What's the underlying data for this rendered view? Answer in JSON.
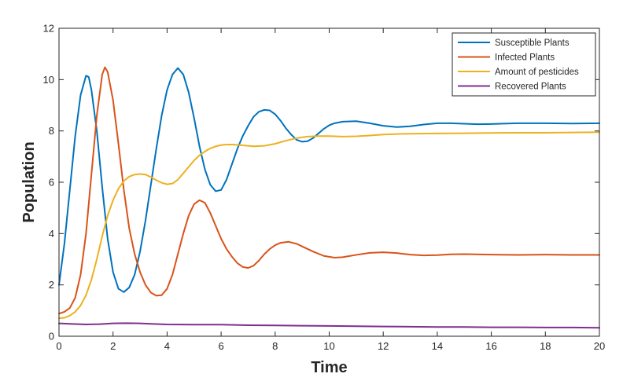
{
  "chart_data": {
    "type": "line",
    "title": "",
    "xlabel": "Time",
    "ylabel": "Population",
    "xlim": [
      0,
      20
    ],
    "ylim": [
      0,
      12
    ],
    "xticks": [
      0,
      2,
      4,
      6,
      8,
      10,
      12,
      14,
      16,
      18,
      20
    ],
    "yticks": [
      0,
      2,
      4,
      6,
      8,
      10,
      12
    ],
    "grid": false,
    "box": true,
    "legend_position": "top-right",
    "series": [
      {
        "name": "Susceptible Plants",
        "color": "#0072BD",
        "points": [
          [
            0,
            2.0
          ],
          [
            0.2,
            3.6
          ],
          [
            0.4,
            5.7
          ],
          [
            0.6,
            7.8
          ],
          [
            0.8,
            9.4
          ],
          [
            1.0,
            10.15
          ],
          [
            1.1,
            10.1
          ],
          [
            1.2,
            9.6
          ],
          [
            1.4,
            8.0
          ],
          [
            1.6,
            5.8
          ],
          [
            1.8,
            3.8
          ],
          [
            2.0,
            2.5
          ],
          [
            2.2,
            1.85
          ],
          [
            2.4,
            1.72
          ],
          [
            2.6,
            1.9
          ],
          [
            2.8,
            2.4
          ],
          [
            3.0,
            3.3
          ],
          [
            3.2,
            4.5
          ],
          [
            3.4,
            5.9
          ],
          [
            3.6,
            7.3
          ],
          [
            3.8,
            8.6
          ],
          [
            4.0,
            9.6
          ],
          [
            4.2,
            10.2
          ],
          [
            4.4,
            10.45
          ],
          [
            4.6,
            10.2
          ],
          [
            4.8,
            9.5
          ],
          [
            5.0,
            8.5
          ],
          [
            5.2,
            7.4
          ],
          [
            5.4,
            6.5
          ],
          [
            5.6,
            5.9
          ],
          [
            5.8,
            5.65
          ],
          [
            6.0,
            5.7
          ],
          [
            6.2,
            6.1
          ],
          [
            6.4,
            6.7
          ],
          [
            6.6,
            7.3
          ],
          [
            6.8,
            7.8
          ],
          [
            7.0,
            8.2
          ],
          [
            7.2,
            8.55
          ],
          [
            7.4,
            8.75
          ],
          [
            7.6,
            8.82
          ],
          [
            7.8,
            8.8
          ],
          [
            8.0,
            8.65
          ],
          [
            8.2,
            8.4
          ],
          [
            8.4,
            8.1
          ],
          [
            8.6,
            7.85
          ],
          [
            8.8,
            7.65
          ],
          [
            9.0,
            7.58
          ],
          [
            9.2,
            7.6
          ],
          [
            9.4,
            7.72
          ],
          [
            9.6,
            7.9
          ],
          [
            9.8,
            8.08
          ],
          [
            10.0,
            8.22
          ],
          [
            10.2,
            8.3
          ],
          [
            10.5,
            8.36
          ],
          [
            11.0,
            8.38
          ],
          [
            11.5,
            8.3
          ],
          [
            12.0,
            8.2
          ],
          [
            12.5,
            8.15
          ],
          [
            13.0,
            8.18
          ],
          [
            13.5,
            8.25
          ],
          [
            14.0,
            8.3
          ],
          [
            14.5,
            8.3
          ],
          [
            15.0,
            8.28
          ],
          [
            15.5,
            8.26
          ],
          [
            16.0,
            8.27
          ],
          [
            17.0,
            8.3
          ],
          [
            18.0,
            8.3
          ],
          [
            19.0,
            8.29
          ],
          [
            20.0,
            8.3
          ]
        ]
      },
      {
        "name": "Infected Plants",
        "color": "#D95319",
        "points": [
          [
            0,
            0.88
          ],
          [
            0.2,
            0.95
          ],
          [
            0.4,
            1.1
          ],
          [
            0.6,
            1.5
          ],
          [
            0.8,
            2.4
          ],
          [
            1.0,
            4.0
          ],
          [
            1.2,
            6.3
          ],
          [
            1.4,
            8.6
          ],
          [
            1.6,
            10.2
          ],
          [
            1.7,
            10.48
          ],
          [
            1.8,
            10.3
          ],
          [
            2.0,
            9.2
          ],
          [
            2.2,
            7.5
          ],
          [
            2.4,
            5.7
          ],
          [
            2.6,
            4.2
          ],
          [
            2.8,
            3.2
          ],
          [
            3.0,
            2.5
          ],
          [
            3.2,
            2.0
          ],
          [
            3.4,
            1.7
          ],
          [
            3.6,
            1.58
          ],
          [
            3.8,
            1.6
          ],
          [
            4.0,
            1.85
          ],
          [
            4.2,
            2.4
          ],
          [
            4.4,
            3.2
          ],
          [
            4.6,
            4.0
          ],
          [
            4.8,
            4.7
          ],
          [
            5.0,
            5.15
          ],
          [
            5.2,
            5.3
          ],
          [
            5.4,
            5.2
          ],
          [
            5.6,
            4.8
          ],
          [
            5.8,
            4.3
          ],
          [
            6.0,
            3.8
          ],
          [
            6.2,
            3.4
          ],
          [
            6.4,
            3.1
          ],
          [
            6.6,
            2.85
          ],
          [
            6.8,
            2.7
          ],
          [
            7.0,
            2.66
          ],
          [
            7.2,
            2.75
          ],
          [
            7.4,
            2.95
          ],
          [
            7.6,
            3.2
          ],
          [
            7.8,
            3.4
          ],
          [
            8.0,
            3.55
          ],
          [
            8.2,
            3.64
          ],
          [
            8.5,
            3.68
          ],
          [
            8.8,
            3.6
          ],
          [
            9.0,
            3.5
          ],
          [
            9.4,
            3.3
          ],
          [
            9.8,
            3.13
          ],
          [
            10.2,
            3.06
          ],
          [
            10.5,
            3.08
          ],
          [
            11.0,
            3.17
          ],
          [
            11.5,
            3.25
          ],
          [
            12.0,
            3.27
          ],
          [
            12.5,
            3.24
          ],
          [
            13.0,
            3.18
          ],
          [
            13.5,
            3.15
          ],
          [
            14.0,
            3.16
          ],
          [
            14.5,
            3.19
          ],
          [
            15.0,
            3.2
          ],
          [
            16.0,
            3.18
          ],
          [
            17.0,
            3.17
          ],
          [
            18.0,
            3.18
          ],
          [
            19.0,
            3.17
          ],
          [
            20.0,
            3.17
          ]
        ]
      },
      {
        "name": "Amount of pesticides",
        "color": "#EDB120",
        "points": [
          [
            0,
            0.7
          ],
          [
            0.2,
            0.72
          ],
          [
            0.4,
            0.8
          ],
          [
            0.6,
            0.95
          ],
          [
            0.8,
            1.2
          ],
          [
            1.0,
            1.6
          ],
          [
            1.2,
            2.2
          ],
          [
            1.4,
            3.0
          ],
          [
            1.6,
            3.9
          ],
          [
            1.8,
            4.7
          ],
          [
            2.0,
            5.3
          ],
          [
            2.2,
            5.75
          ],
          [
            2.4,
            6.05
          ],
          [
            2.6,
            6.22
          ],
          [
            2.8,
            6.3
          ],
          [
            3.0,
            6.32
          ],
          [
            3.2,
            6.3
          ],
          [
            3.4,
            6.2
          ],
          [
            3.6,
            6.08
          ],
          [
            3.8,
            5.98
          ],
          [
            4.0,
            5.92
          ],
          [
            4.2,
            5.95
          ],
          [
            4.4,
            6.1
          ],
          [
            4.6,
            6.35
          ],
          [
            4.8,
            6.6
          ],
          [
            5.0,
            6.85
          ],
          [
            5.2,
            7.05
          ],
          [
            5.4,
            7.2
          ],
          [
            5.6,
            7.32
          ],
          [
            5.8,
            7.4
          ],
          [
            6.0,
            7.45
          ],
          [
            6.2,
            7.47
          ],
          [
            6.4,
            7.47
          ],
          [
            6.8,
            7.44
          ],
          [
            7.2,
            7.4
          ],
          [
            7.6,
            7.42
          ],
          [
            8.0,
            7.5
          ],
          [
            8.4,
            7.62
          ],
          [
            8.8,
            7.72
          ],
          [
            9.2,
            7.78
          ],
          [
            9.6,
            7.8
          ],
          [
            10.0,
            7.8
          ],
          [
            10.5,
            7.78
          ],
          [
            11.0,
            7.79
          ],
          [
            11.5,
            7.82
          ],
          [
            12.0,
            7.86
          ],
          [
            12.5,
            7.88
          ],
          [
            13.0,
            7.89
          ],
          [
            14.0,
            7.9
          ],
          [
            15.0,
            7.91
          ],
          [
            16.0,
            7.92
          ],
          [
            17.0,
            7.93
          ],
          [
            18.0,
            7.93
          ],
          [
            19.0,
            7.94
          ],
          [
            20.0,
            7.95
          ]
        ]
      },
      {
        "name": "Recovered Plants",
        "color": "#7E2F8E",
        "points": [
          [
            0,
            0.5
          ],
          [
            0.5,
            0.48
          ],
          [
            1.0,
            0.46
          ],
          [
            1.5,
            0.47
          ],
          [
            2.0,
            0.5
          ],
          [
            2.5,
            0.51
          ],
          [
            3.0,
            0.5
          ],
          [
            3.5,
            0.48
          ],
          [
            4.0,
            0.46
          ],
          [
            5.0,
            0.45
          ],
          [
            6.0,
            0.45
          ],
          [
            7.0,
            0.43
          ],
          [
            8.0,
            0.42
          ],
          [
            9.0,
            0.41
          ],
          [
            10.0,
            0.4
          ],
          [
            11.0,
            0.39
          ],
          [
            12.0,
            0.38
          ],
          [
            13.0,
            0.37
          ],
          [
            14.0,
            0.36
          ],
          [
            15.0,
            0.36
          ],
          [
            16.0,
            0.35
          ],
          [
            17.0,
            0.35
          ],
          [
            18.0,
            0.34
          ],
          [
            19.0,
            0.34
          ],
          [
            20.0,
            0.33
          ]
        ]
      }
    ]
  }
}
